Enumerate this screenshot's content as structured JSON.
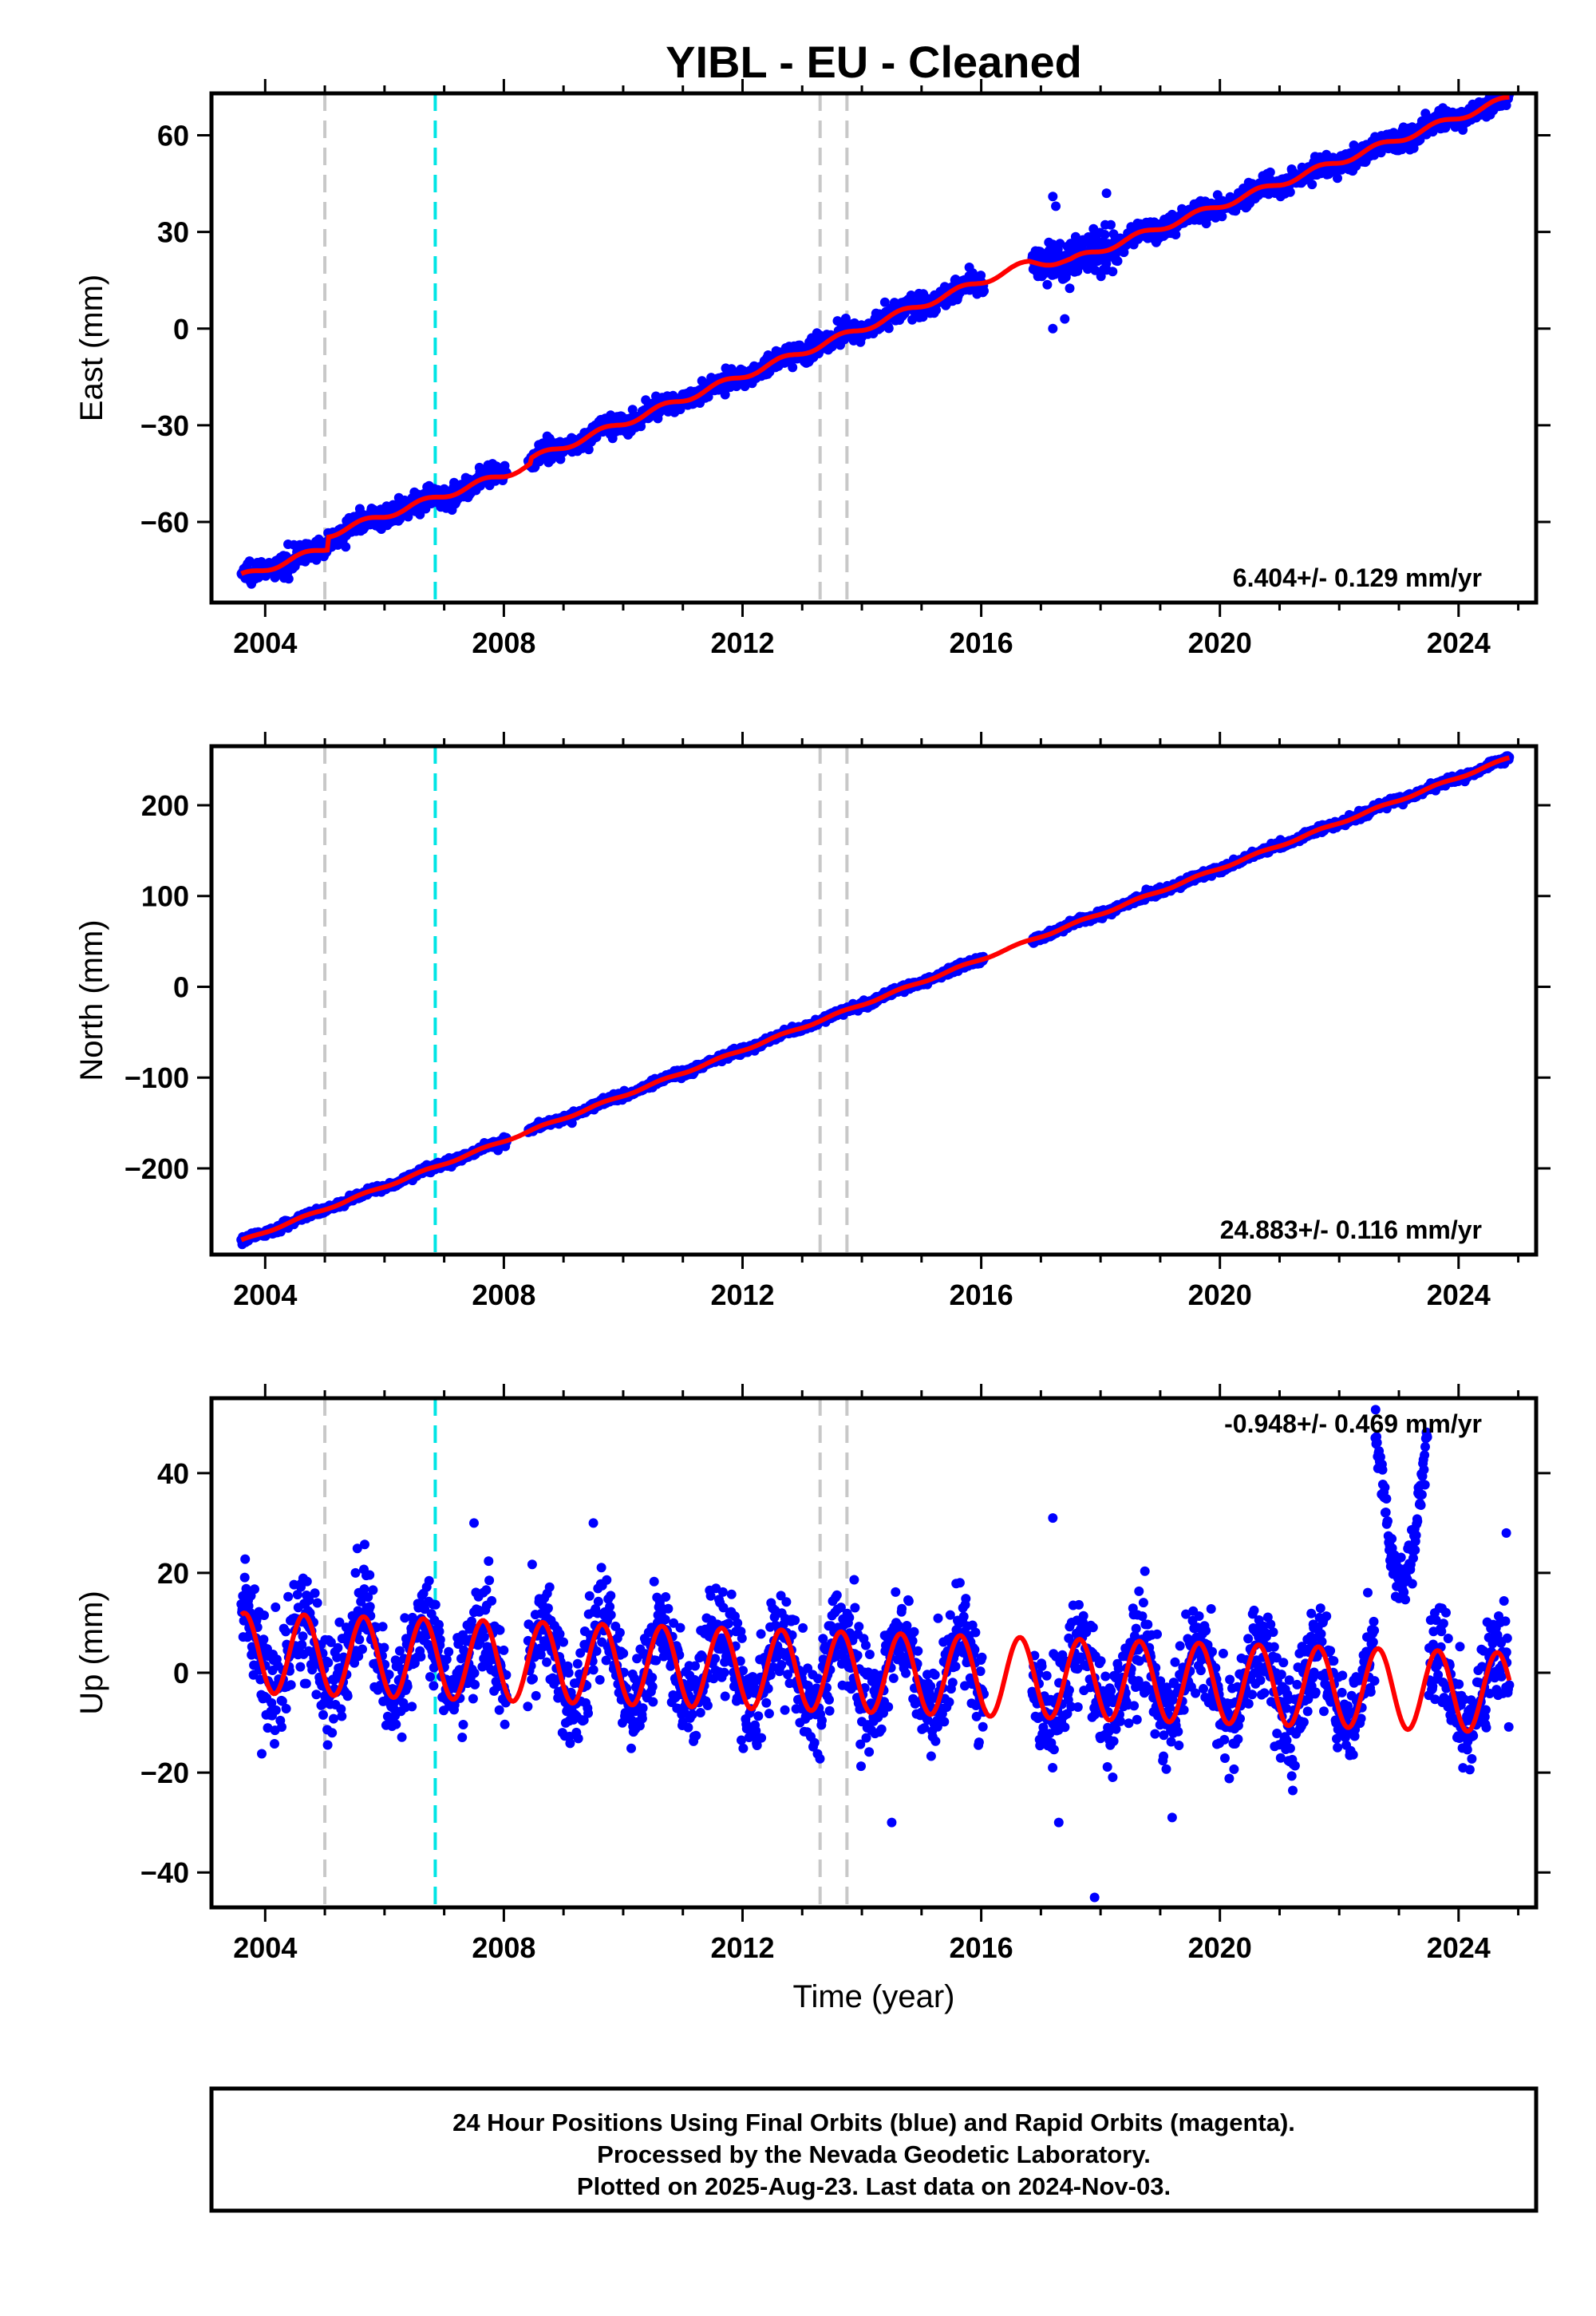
{
  "title": "YIBL  - EU - Cleaned",
  "colors": {
    "final_orbits": "#0000ff",
    "model_fit": "#ff0000",
    "antenna_change": "#c8c8c8",
    "equipment_change": "#00e5e5"
  },
  "chart_data": [
    {
      "type": "scatter",
      "component": "East",
      "ylabel": "East (mm)",
      "xlim": [
        2003.1,
        2025.3
      ],
      "ylim": [
        -85,
        73
      ],
      "yticks": [
        -60,
        -30,
        0,
        30,
        60
      ],
      "ytick_labels": [
        "−60",
        "−30",
        "0",
        "30",
        "60"
      ],
      "xticks": [
        2004,
        2008,
        2012,
        2016,
        2020,
        2024
      ],
      "xtick_labels": [
        "2004",
        "2008",
        "2012",
        "2016",
        "2020",
        "2024"
      ],
      "rate_text": "6.404+/- 0.129 mm/yr",
      "rate_position": "bottom-right",
      "trend": {
        "x": [
          2003.6,
          2024.85
        ],
        "y": [
          -77,
          66
        ]
      },
      "steps": [
        {
          "x": 2005.05,
          "dy": 4
        },
        {
          "x": 2008.45,
          "dy": 1.5
        }
      ],
      "seasonal_amplitude": 1.0,
      "offset_knots": {
        "x": [
          2003.6,
          2008.0,
          2016.5,
          2016.8,
          2017.5,
          2024.85
        ],
        "y": [
          0,
          -2,
          3,
          3,
          -1,
          0
        ]
      },
      "noise": 1.6,
      "outliers": [
        {
          "x": 2017.2,
          "y": 41
        },
        {
          "x": 2017.25,
          "y": 38
        },
        {
          "x": 2018.1,
          "y": 42
        },
        {
          "x": 2017.2,
          "y": 0
        },
        {
          "x": 2017.4,
          "y": 3
        },
        {
          "x": 2015.6,
          "y": 9
        },
        {
          "x": 2015.8,
          "y": 19
        }
      ]
    },
    {
      "type": "scatter",
      "component": "North",
      "ylabel": "North (mm)",
      "xlim": [
        2003.1,
        2025.3
      ],
      "ylim": [
        -295,
        265
      ],
      "yticks": [
        -200,
        -100,
        0,
        100,
        200
      ],
      "ytick_labels": [
        "−200",
        "−100",
        "0",
        "100",
        "200"
      ],
      "xticks": [
        2004,
        2008,
        2012,
        2016,
        2020,
        2024
      ],
      "xtick_labels": [
        "2004",
        "2008",
        "2012",
        "2016",
        "2020",
        "2024"
      ],
      "rate_text": "24.883+/- 0.116 mm/yr",
      "rate_position": "bottom-right",
      "trend": {
        "x": [
          2003.6,
          2024.85
        ],
        "y": [
          -280,
          252
        ]
      },
      "steps": [],
      "seasonal_amplitude": 1.2,
      "offset_knots": {
        "x": [
          2003.6,
          2024.85
        ],
        "y": [
          0,
          0
        ]
      },
      "noise": 2.0,
      "outliers": []
    },
    {
      "type": "scatter",
      "component": "Up",
      "ylabel": "Up (mm)",
      "xlabel": "Time (year)",
      "xlim": [
        2003.1,
        2025.3
      ],
      "ylim": [
        -47,
        55
      ],
      "yticks": [
        -40,
        -20,
        0,
        20,
        40
      ],
      "ytick_labels": [
        "−40",
        "−20",
        "0",
        "20",
        "40"
      ],
      "xticks": [
        2004,
        2008,
        2012,
        2016,
        2020,
        2024
      ],
      "xtick_labels": [
        "2004",
        "2008",
        "2012",
        "2016",
        "2020",
        "2024"
      ],
      "rate_text": "-0.948+/- 0.469 mm/yr",
      "rate_position": "top-right",
      "trend": {
        "x": [
          2003.6,
          2024.85
        ],
        "y": [
          4,
          -4
        ]
      },
      "steps": [],
      "seasonal_amplitude": 8.0,
      "offset_knots": {
        "x": [
          2003.6,
          2024.85
        ],
        "y": [
          0,
          0
        ]
      },
      "noise": 5.0,
      "anomaly": {
        "x_range": [
          2022.6,
          2023.5
        ],
        "y_range": [
          18,
          52
        ]
      },
      "outliers": [
        {
          "x": 2017.9,
          "y": -45
        },
        {
          "x": 2014.5,
          "y": -30
        },
        {
          "x": 2017.3,
          "y": -30
        },
        {
          "x": 2019.2,
          "y": -29
        },
        {
          "x": 2007.5,
          "y": 30
        },
        {
          "x": 2009.5,
          "y": 30
        },
        {
          "x": 2017.2,
          "y": 31
        },
        {
          "x": 2024.8,
          "y": 28
        }
      ]
    }
  ],
  "event_lines": {
    "gray_dashed": [
      2005.0,
      2013.3,
      2013.75
    ],
    "cyan_dashed": [
      2006.85
    ]
  },
  "footer": {
    "line1": "24 Hour Positions Using Final Orbits (blue) and Rapid Orbits (magenta).",
    "line2": "Processed by the Nevada Geodetic Laboratory.",
    "line3": "Plotted on 2025-Aug-23. Last data on 2024-Nov-03."
  }
}
